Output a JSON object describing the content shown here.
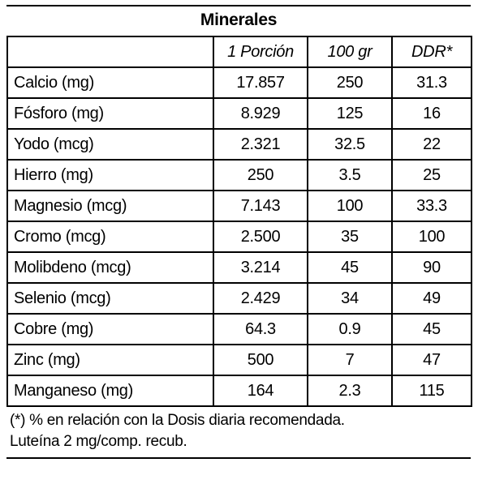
{
  "table": {
    "title": "Minerales",
    "columns": [
      "",
      "1 Porción",
      "100 gr",
      "DDR*"
    ],
    "rows": [
      {
        "name": "Calcio (mg)",
        "portion": "17.857",
        "per100": "250",
        "ddr": "31.3"
      },
      {
        "name": "Fósforo (mg)",
        "portion": "8.929",
        "per100": "125",
        "ddr": "16"
      },
      {
        "name": "Yodo (mcg)",
        "portion": "2.321",
        "per100": "32.5",
        "ddr": "22"
      },
      {
        "name": "Hierro (mg)",
        "portion": "250",
        "per100": "3.5",
        "ddr": "25"
      },
      {
        "name": "Magnesio (mcg)",
        "portion": "7.143",
        "per100": "100",
        "ddr": "33.3"
      },
      {
        "name": "Cromo (mcg)",
        "portion": "2.500",
        "per100": "35",
        "ddr": "100"
      },
      {
        "name": "Molibdeno (mcg)",
        "portion": "3.214",
        "per100": "45",
        "ddr": "90"
      },
      {
        "name": "Selenio (mcg)",
        "portion": "2.429",
        "per100": "34",
        "ddr": "49"
      },
      {
        "name": "Cobre (mg)",
        "portion": "64.3",
        "per100": "0.9",
        "ddr": "45"
      },
      {
        "name": "Zinc (mg)",
        "portion": "500",
        "per100": "7",
        "ddr": "47"
      },
      {
        "name": "Manganeso (mg)",
        "portion": "164",
        "per100": "2.3",
        "ddr": "115"
      }
    ]
  },
  "notes": {
    "footnote": "(*) % en relación con la Dosis diaria recomendada.",
    "lutein": "Luteína 2 mg/comp. recub."
  }
}
